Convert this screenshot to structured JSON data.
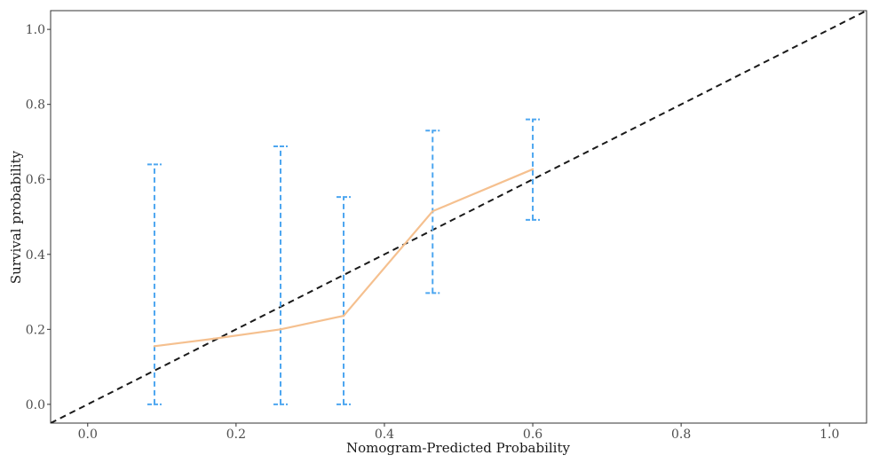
{
  "chart_data": {
    "type": "line",
    "title": "",
    "xlabel": "Nomogram-Predicted Probability",
    "ylabel": "Survival probability",
    "xlim": [
      -0.05,
      1.05
    ],
    "ylim": [
      -0.05,
      1.05
    ],
    "x_ticks": [
      0.0,
      0.2,
      0.4,
      0.6,
      0.8,
      1.0
    ],
    "y_ticks": [
      0.0,
      0.2,
      0.4,
      0.6,
      0.8,
      1.0
    ],
    "x_tick_labels": [
      "0.0",
      "0.2",
      "0.4",
      "0.6",
      "0.8",
      "1.0"
    ],
    "y_tick_labels": [
      "0.0",
      "0.2",
      "0.4",
      "0.6",
      "0.8",
      "1.0"
    ],
    "grid": false,
    "legend": "none",
    "reference_line": {
      "x": [
        -0.05,
        1.05
      ],
      "y": [
        -0.05,
        1.05
      ],
      "color": "#1a1a1a",
      "style": "dashed"
    },
    "series": [
      {
        "x": [
          0.09,
          0.17,
          0.26,
          0.345,
          0.465,
          0.6
        ],
        "y": [
          0.155,
          0.175,
          0.2,
          0.236,
          0.515,
          0.627
        ],
        "color": "#f5c08f"
      }
    ],
    "error_bars": {
      "color": "#4da6f0",
      "items": [
        {
          "x": 0.09,
          "low": 0.0,
          "high": 0.64
        },
        {
          "x": 0.26,
          "low": 0.0,
          "high": 0.688
        },
        {
          "x": 0.345,
          "low": 0.0,
          "high": 0.553
        },
        {
          "x": 0.465,
          "low": 0.297,
          "high": 0.73
        },
        {
          "x": 0.6,
          "low": 0.492,
          "high": 0.76
        }
      ]
    }
  }
}
